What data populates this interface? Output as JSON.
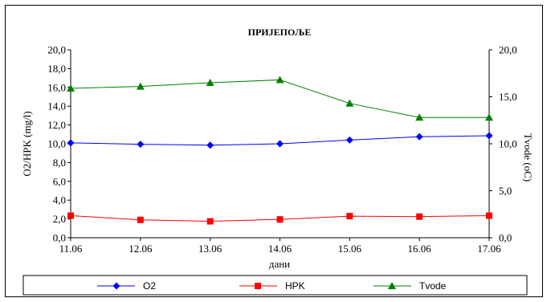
{
  "chart_data": {
    "type": "line",
    "title": "ПРИЈЕПОЉЕ",
    "xlabel": "дани",
    "ylabel": "O2/HPK (mg/l)",
    "y2label": "Tvode (oC)",
    "categories": [
      "11.06",
      "12.06",
      "13.06",
      "14.06",
      "15.06",
      "16.06",
      "17.06"
    ],
    "ylim": [
      0,
      20
    ],
    "y_ticks": [
      "0,0",
      "2,0",
      "4,0",
      "6,0",
      "8,0",
      "10,0",
      "12,0",
      "14,0",
      "16,0",
      "18,0",
      "20,0"
    ],
    "y2lim": [
      0,
      20
    ],
    "y2_ticks": [
      "0,0",
      "5,0",
      "10,0",
      "15,0",
      "20,0"
    ],
    "grid": false,
    "legend_position": "bottom",
    "series": [
      {
        "name": "O2",
        "axis": "left",
        "color": "#0000ff",
        "marker": "diamond",
        "values": [
          10.1,
          9.95,
          9.85,
          10.0,
          10.4,
          10.75,
          10.85
        ]
      },
      {
        "name": "HPK",
        "axis": "left",
        "color": "#ff0000",
        "marker": "square",
        "values": [
          2.35,
          1.9,
          1.75,
          1.95,
          2.3,
          2.25,
          2.35
        ]
      },
      {
        "name": "Tvode",
        "axis": "right",
        "color": "#008000",
        "marker": "triangle",
        "values": [
          15.9,
          16.1,
          16.5,
          16.8,
          14.3,
          12.8,
          12.8
        ]
      }
    ]
  }
}
